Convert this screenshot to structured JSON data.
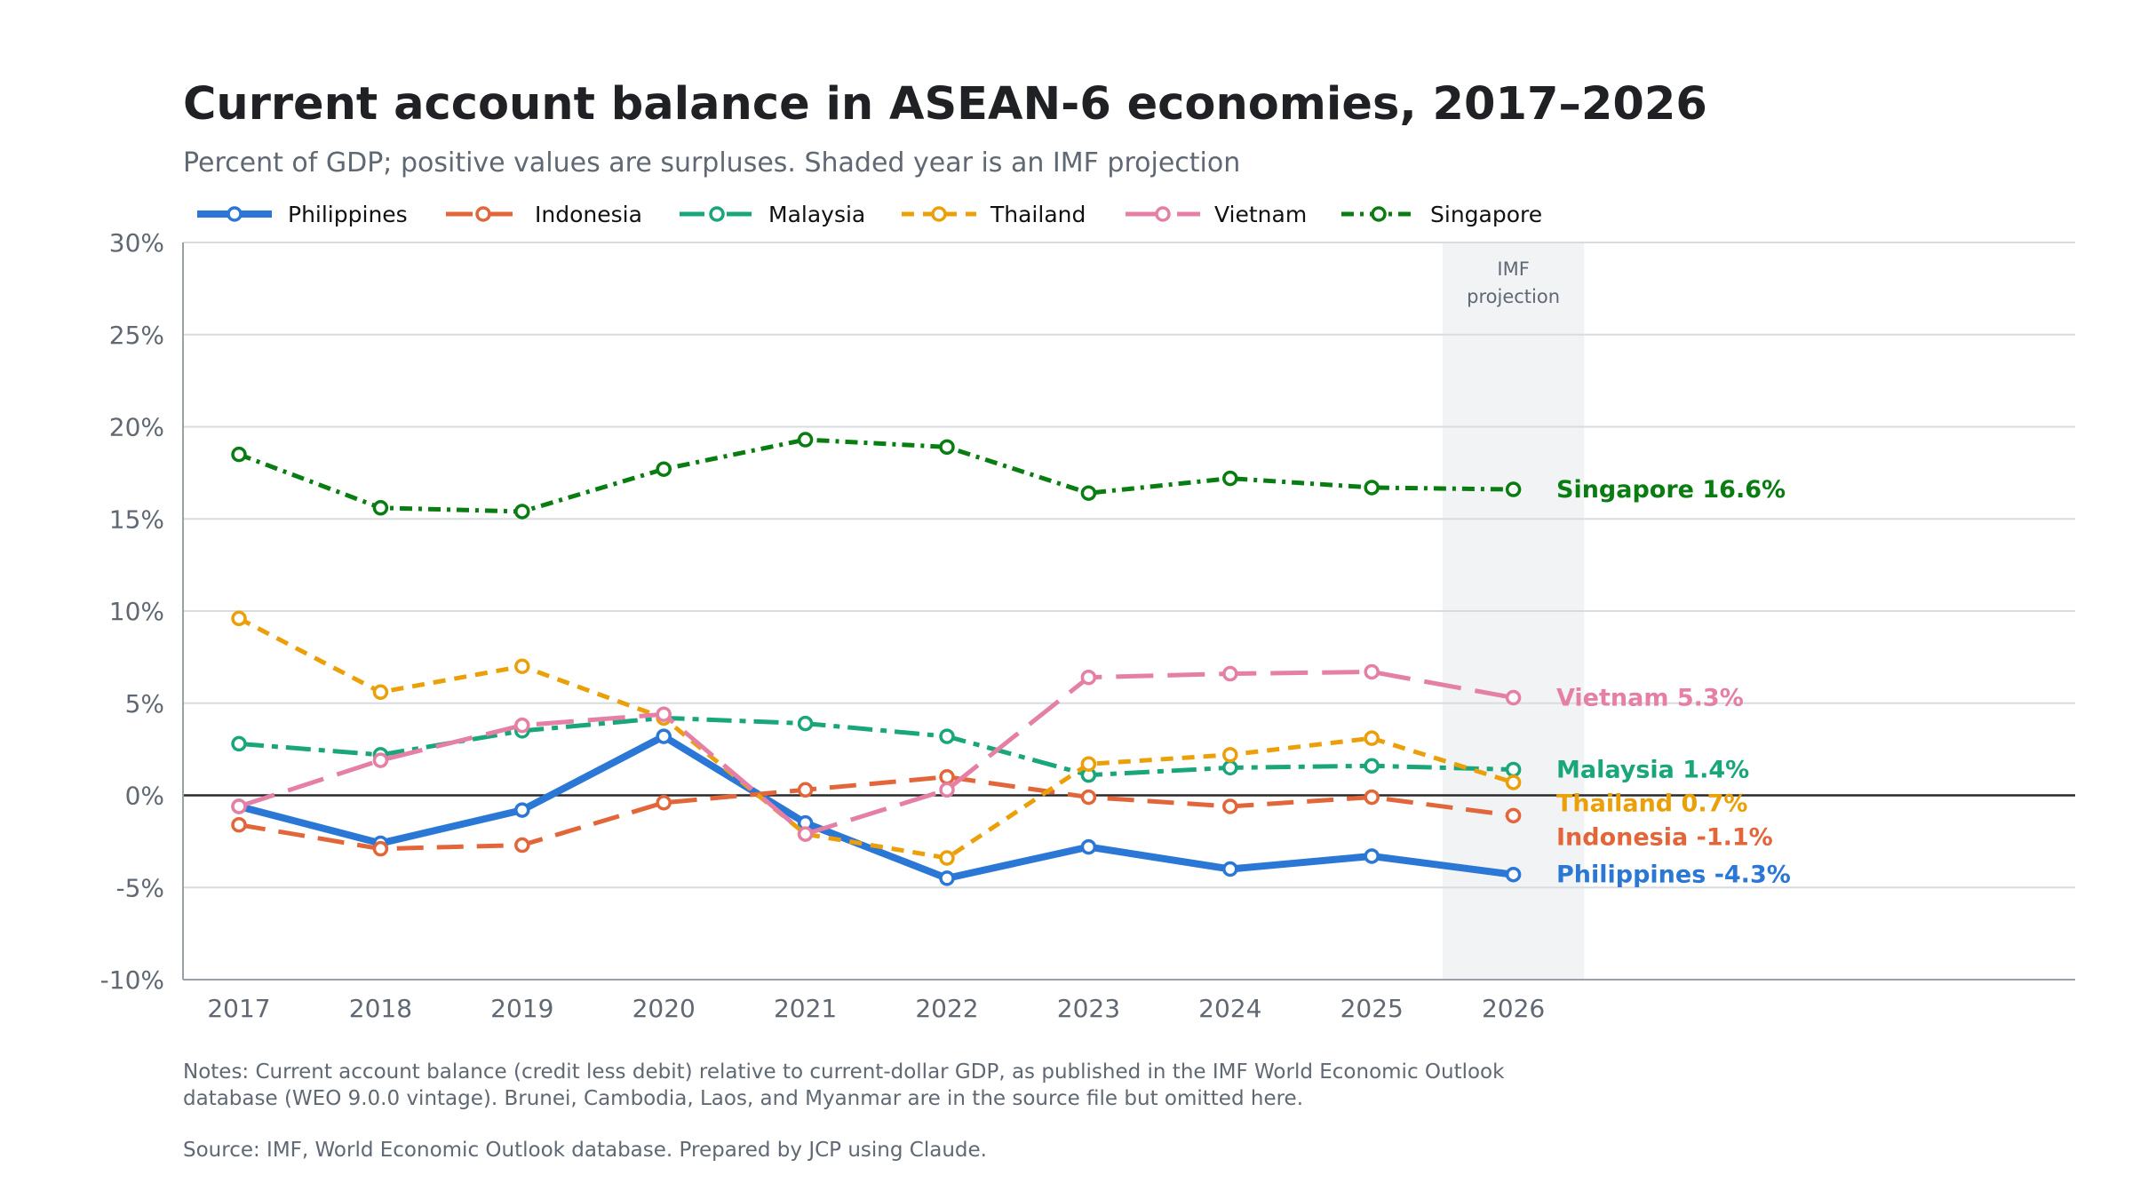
{
  "title": "Current account balance in ASEAN-6 economies, 2017–2026",
  "subtitle": "Percent of GDP; positive values are surpluses. Shaded year is an IMF projection",
  "notes": "Notes: Current account balance (credit less debit) relative to current-dollar GDP, as published in the IMF World Economic Outlook database (WEO 9.0.0 vintage). Brunei, Cambodia, Laos, and Myanmar are in the source file but omitted here.",
  "source": "Source: IMF, World Economic Outlook database. Prepared by JCP using Claude.",
  "chart_data": {
    "type": "line",
    "title": "Current account balance in ASEAN-6 economies, 2017–2026",
    "xlabel": "",
    "ylabel": "",
    "x": [
      2017,
      2018,
      2019,
      2020,
      2021,
      2022,
      2023,
      2024,
      2025,
      2026
    ],
    "ylim": [
      -10,
      30
    ],
    "ytick_values": [
      -10,
      -5,
      0,
      5,
      10,
      15,
      20,
      25,
      30
    ],
    "ytick_labels": [
      "-10%",
      "-5%",
      "0%",
      "5%",
      "10%",
      "15%",
      "20%",
      "25%",
      "30%"
    ],
    "grid": "horizontal",
    "legend_position": "top-left",
    "projection": {
      "year": 2026,
      "label_line1": "IMF",
      "label_line2": "projection",
      "color": "#f1f3f5"
    },
    "series": [
      {
        "name": "Philippines",
        "color": "#2b77d6",
        "dash": "solid",
        "width": 8,
        "values": [
          -0.6,
          -2.6,
          -0.8,
          3.2,
          -1.5,
          -4.5,
          -2.8,
          -4.0,
          -3.3,
          -4.3
        ],
        "end_label": "Philippines  -4.3%"
      },
      {
        "name": "Indonesia",
        "color": "#e3663a",
        "dash": "longdash",
        "width": 5,
        "values": [
          -1.6,
          -2.9,
          -2.7,
          -0.4,
          0.3,
          1.0,
          -0.1,
          -0.6,
          -0.1,
          -1.1
        ],
        "end_label": "Indonesia  -1.1%"
      },
      {
        "name": "Malaysia",
        "color": "#19a67a",
        "dash": "dashdot",
        "width": 5,
        "values": [
          2.8,
          2.2,
          3.5,
          4.2,
          3.9,
          3.2,
          1.1,
          1.5,
          1.6,
          1.4
        ],
        "end_label": "Malaysia  1.4%"
      },
      {
        "name": "Thailand",
        "color": "#eba00a",
        "dash": "dash",
        "width": 5,
        "values": [
          9.6,
          5.6,
          7.0,
          4.2,
          -2.1,
          -3.4,
          1.7,
          2.2,
          3.1,
          0.7
        ],
        "end_label": "Thailand  0.7%"
      },
      {
        "name": "Vietnam",
        "color": "#e57fa6",
        "dash": "longdash2",
        "width": 5,
        "values": [
          -0.6,
          1.9,
          3.8,
          4.4,
          -2.1,
          0.3,
          6.4,
          6.6,
          6.7,
          5.3
        ],
        "end_label": "Vietnam  5.3%"
      },
      {
        "name": "Singapore",
        "color": "#0a7d12",
        "dash": "dotdash",
        "width": 5,
        "values": [
          18.5,
          15.6,
          15.4,
          17.7,
          19.3,
          18.9,
          16.4,
          17.2,
          16.7,
          16.6
        ],
        "end_label": "Singapore  16.6%"
      }
    ]
  }
}
